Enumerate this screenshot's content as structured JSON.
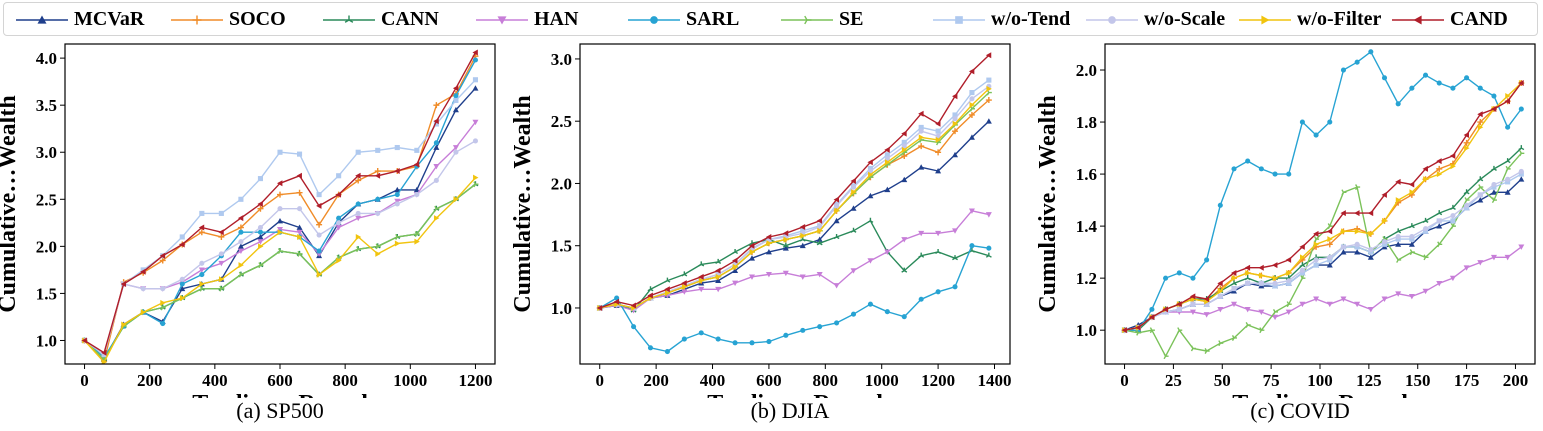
{
  "legend": [
    {
      "label": "MCVaR",
      "color": "#1f3f8c",
      "marker": "triangle-up"
    },
    {
      "label": "SOCO",
      "color": "#f08c28",
      "marker": "plus"
    },
    {
      "label": "CANN",
      "color": "#2a8a5a",
      "marker": "tri"
    },
    {
      "label": "HAN",
      "color": "#c77ed8",
      "marker": "triangle-down"
    },
    {
      "label": "SARL",
      "color": "#27a3d3",
      "marker": "circle"
    },
    {
      "label": "SE",
      "color": "#7bc25a",
      "marker": "tri-right"
    },
    {
      "label": "w/o-Tend",
      "color": "#afc9ef",
      "marker": "square"
    },
    {
      "label": "w/o-Scale",
      "color": "#c3c6ea",
      "marker": "circle"
    },
    {
      "label": "w/o-Filter",
      "color": "#f1c40f",
      "marker": "triangle-right"
    },
    {
      "label": "CAND",
      "color": "#b01e2a",
      "marker": "triangle-left"
    }
  ],
  "chart_data": [
    {
      "type": "line",
      "title": "(a) SP500",
      "xlabel": "Trading…Round",
      "ylabel": "Cumulative…Wealth",
      "xlim": [
        -60,
        1260
      ],
      "ylim": [
        0.75,
        4.15
      ],
      "xticks": [
        0,
        200,
        400,
        600,
        800,
        1000,
        1200
      ],
      "yticks": [
        1.0,
        1.5,
        2.0,
        2.5,
        3.0,
        3.5,
        4.0
      ],
      "x": [
        0,
        60,
        120,
        180,
        240,
        300,
        360,
        420,
        480,
        540,
        600,
        660,
        720,
        780,
        840,
        900,
        960,
        1020,
        1080,
        1140,
        1200
      ],
      "series": [
        {
          "name": "MCVaR",
          "values": [
            1.0,
            0.8,
            1.17,
            1.3,
            1.2,
            1.55,
            1.6,
            1.65,
            2.0,
            2.1,
            2.27,
            2.2,
            1.9,
            2.25,
            2.45,
            2.5,
            2.6,
            2.6,
            3.05,
            3.45,
            3.68
          ]
        },
        {
          "name": "SOCO",
          "values": [
            1.0,
            0.78,
            1.62,
            1.72,
            1.85,
            2.02,
            2.15,
            2.1,
            2.2,
            2.4,
            2.55,
            2.57,
            2.23,
            2.55,
            2.7,
            2.8,
            2.8,
            2.85,
            3.5,
            3.62,
            4.02
          ]
        },
        {
          "name": "CANN",
          "values": [
            1.0,
            0.8,
            1.15,
            1.3,
            1.35,
            1.45,
            1.55,
            1.55,
            1.7,
            1.8,
            1.95,
            1.92,
            1.7,
            1.88,
            1.97,
            2.0,
            2.1,
            2.13,
            2.4,
            2.5,
            2.66
          ]
        },
        {
          "name": "HAN",
          "values": [
            1.0,
            0.85,
            1.6,
            1.55,
            1.55,
            1.62,
            1.75,
            1.82,
            1.95,
            2.05,
            2.18,
            2.15,
            1.92,
            2.2,
            2.3,
            2.35,
            2.48,
            2.55,
            2.85,
            3.05,
            3.32
          ]
        },
        {
          "name": "SARL",
          "values": [
            1.0,
            0.82,
            1.15,
            1.3,
            1.18,
            1.6,
            1.7,
            1.9,
            2.15,
            2.15,
            2.15,
            2.1,
            1.95,
            2.3,
            2.45,
            2.5,
            2.55,
            2.85,
            3.1,
            3.6,
            3.98
          ]
        },
        {
          "name": "SE",
          "values": [
            1.0,
            0.8,
            1.15,
            1.3,
            1.35,
            1.45,
            1.55,
            1.55,
            1.7,
            1.8,
            1.95,
            1.92,
            1.7,
            1.88,
            1.97,
            2.0,
            2.1,
            2.13,
            2.4,
            2.5,
            2.66
          ]
        },
        {
          "name": "w/o-Tend",
          "values": [
            1.0,
            0.85,
            1.6,
            1.75,
            1.9,
            2.1,
            2.35,
            2.35,
            2.5,
            2.72,
            3.0,
            2.98,
            2.55,
            2.75,
            3.0,
            3.02,
            3.05,
            3.02,
            3.3,
            3.55,
            3.77
          ]
        },
        {
          "name": "w/o-Scale",
          "values": [
            1.0,
            0.85,
            1.6,
            1.55,
            1.55,
            1.65,
            1.82,
            1.92,
            2.05,
            2.2,
            2.4,
            2.4,
            2.12,
            2.25,
            2.35,
            2.35,
            2.45,
            2.55,
            2.7,
            3.0,
            3.12
          ]
        },
        {
          "name": "w/o-Filter",
          "values": [
            1.0,
            0.77,
            1.17,
            1.3,
            1.4,
            1.45,
            1.6,
            1.65,
            1.8,
            2.0,
            2.15,
            2.1,
            1.7,
            1.85,
            2.1,
            1.92,
            2.03,
            2.05,
            2.3,
            2.5,
            2.73
          ]
        },
        {
          "name": "CAND",
          "values": [
            1.0,
            0.87,
            1.6,
            1.73,
            1.9,
            2.02,
            2.2,
            2.15,
            2.3,
            2.45,
            2.67,
            2.75,
            2.43,
            2.55,
            2.75,
            2.75,
            2.8,
            2.87,
            3.33,
            3.68,
            4.06
          ]
        }
      ]
    },
    {
      "type": "line",
      "title": "(b) DJIA",
      "xlabel": "Trading…Round",
      "ylabel": "Cumulative…Wealth",
      "xlim": [
        -70,
        1455
      ],
      "ylim": [
        0.55,
        3.12
      ],
      "xticks": [
        0,
        200,
        400,
        600,
        800,
        1000,
        1200,
        1400
      ],
      "yticks": [
        1.0,
        1.5,
        2.0,
        2.5,
        3.0
      ],
      "x": [
        0,
        60,
        120,
        180,
        240,
        300,
        360,
        420,
        480,
        540,
        600,
        660,
        720,
        780,
        840,
        900,
        960,
        1020,
        1080,
        1140,
        1200,
        1260,
        1320,
        1380
      ],
      "series": [
        {
          "name": "MCVaR",
          "values": [
            1.0,
            1.02,
            1.0,
            1.08,
            1.1,
            1.15,
            1.2,
            1.22,
            1.3,
            1.4,
            1.45,
            1.48,
            1.5,
            1.55,
            1.7,
            1.8,
            1.9,
            1.95,
            2.03,
            2.13,
            2.1,
            2.23,
            2.37,
            2.5
          ]
        },
        {
          "name": "SOCO",
          "values": [
            1.0,
            1.03,
            1.0,
            1.08,
            1.12,
            1.17,
            1.22,
            1.25,
            1.33,
            1.45,
            1.52,
            1.55,
            1.58,
            1.62,
            1.78,
            1.92,
            2.05,
            2.15,
            2.22,
            2.3,
            2.25,
            2.42,
            2.55,
            2.67
          ]
        },
        {
          "name": "CANN",
          "values": [
            1.0,
            1.03,
            0.98,
            1.15,
            1.22,
            1.27,
            1.35,
            1.37,
            1.45,
            1.52,
            1.55,
            1.5,
            1.55,
            1.52,
            1.57,
            1.62,
            1.7,
            1.45,
            1.3,
            1.42,
            1.45,
            1.4,
            1.46,
            1.42
          ]
        },
        {
          "name": "HAN",
          "values": [
            1.0,
            1.02,
            0.98,
            1.08,
            1.1,
            1.13,
            1.15,
            1.15,
            1.2,
            1.25,
            1.27,
            1.28,
            1.25,
            1.27,
            1.18,
            1.3,
            1.38,
            1.45,
            1.55,
            1.6,
            1.6,
            1.62,
            1.78,
            1.75
          ]
        },
        {
          "name": "SARL",
          "values": [
            1.0,
            1.08,
            0.85,
            0.68,
            0.65,
            0.75,
            0.8,
            0.75,
            0.72,
            0.72,
            0.73,
            0.78,
            0.82,
            0.85,
            0.88,
            0.95,
            1.03,
            0.97,
            0.93,
            1.07,
            1.13,
            1.17,
            1.5,
            1.48
          ]
        },
        {
          "name": "SE",
          "values": [
            1.0,
            1.03,
            1.0,
            1.08,
            1.12,
            1.17,
            1.22,
            1.25,
            1.33,
            1.45,
            1.52,
            1.55,
            1.58,
            1.62,
            1.78,
            1.92,
            2.05,
            2.15,
            2.25,
            2.35,
            2.33,
            2.47,
            2.6,
            2.73
          ]
        },
        {
          "name": "w/o-Tend",
          "values": [
            1.0,
            1.03,
            1.0,
            1.08,
            1.13,
            1.18,
            1.23,
            1.27,
            1.35,
            1.48,
            1.55,
            1.58,
            1.62,
            1.66,
            1.83,
            1.98,
            2.12,
            2.23,
            2.33,
            2.45,
            2.42,
            2.55,
            2.73,
            2.83
          ]
        },
        {
          "name": "w/o-Scale",
          "values": [
            1.0,
            1.03,
            1.0,
            1.08,
            1.13,
            1.18,
            1.23,
            1.27,
            1.35,
            1.47,
            1.55,
            1.57,
            1.6,
            1.65,
            1.82,
            1.97,
            2.1,
            2.2,
            2.3,
            2.42,
            2.38,
            2.52,
            2.68,
            2.78
          ]
        },
        {
          "name": "w/o-Filter",
          "values": [
            1.0,
            1.03,
            1.0,
            1.08,
            1.12,
            1.17,
            1.22,
            1.25,
            1.33,
            1.45,
            1.52,
            1.55,
            1.58,
            1.62,
            1.78,
            1.93,
            2.07,
            2.17,
            2.27,
            2.37,
            2.35,
            2.48,
            2.63,
            2.76
          ]
        },
        {
          "name": "CAND",
          "values": [
            1.0,
            1.05,
            1.02,
            1.1,
            1.15,
            1.2,
            1.25,
            1.3,
            1.38,
            1.5,
            1.57,
            1.6,
            1.65,
            1.7,
            1.87,
            2.02,
            2.17,
            2.27,
            2.4,
            2.56,
            2.48,
            2.7,
            2.9,
            3.03
          ]
        }
      ]
    },
    {
      "type": "line",
      "title": "(c) COVID",
      "xlabel": "Trading…Round",
      "ylabel": "Cumulative…Wealth",
      "xlim": [
        -10,
        210
      ],
      "ylim": [
        0.87,
        2.1
      ],
      "xticks": [
        0,
        25,
        50,
        75,
        100,
        125,
        150,
        175,
        200
      ],
      "yticks": [
        1.0,
        1.2,
        1.4,
        1.6,
        1.8,
        2.0
      ],
      "x": [
        0,
        7,
        14,
        21,
        28,
        35,
        42,
        49,
        56,
        63,
        70,
        77,
        84,
        91,
        98,
        105,
        112,
        119,
        126,
        133,
        140,
        147,
        154,
        161,
        168,
        175,
        182,
        189,
        196,
        203
      ],
      "series": [
        {
          "name": "MCVaR",
          "values": [
            1.0,
            1.02,
            1.05,
            1.07,
            1.08,
            1.1,
            1.1,
            1.13,
            1.15,
            1.18,
            1.17,
            1.17,
            1.18,
            1.22,
            1.25,
            1.25,
            1.3,
            1.3,
            1.28,
            1.32,
            1.33,
            1.33,
            1.38,
            1.4,
            1.42,
            1.47,
            1.5,
            1.53,
            1.53,
            1.58
          ]
        },
        {
          "name": "SOCO",
          "values": [
            1.0,
            1.01,
            1.05,
            1.08,
            1.1,
            1.12,
            1.11,
            1.16,
            1.2,
            1.22,
            1.21,
            1.2,
            1.22,
            1.27,
            1.32,
            1.33,
            1.38,
            1.39,
            1.37,
            1.42,
            1.49,
            1.52,
            1.58,
            1.62,
            1.64,
            1.72,
            1.8,
            1.85,
            1.88,
            1.95
          ]
        },
        {
          "name": "CANN",
          "values": [
            1.0,
            1.0,
            1.05,
            1.08,
            1.1,
            1.12,
            1.12,
            1.15,
            1.18,
            1.2,
            1.18,
            1.2,
            1.2,
            1.25,
            1.28,
            1.28,
            1.32,
            1.32,
            1.3,
            1.35,
            1.38,
            1.4,
            1.42,
            1.45,
            1.47,
            1.53,
            1.58,
            1.62,
            1.65,
            1.7
          ]
        },
        {
          "name": "HAN",
          "values": [
            1.0,
            1.01,
            1.05,
            1.07,
            1.07,
            1.07,
            1.06,
            1.08,
            1.1,
            1.08,
            1.07,
            1.05,
            1.07,
            1.1,
            1.12,
            1.1,
            1.12,
            1.1,
            1.08,
            1.12,
            1.14,
            1.13,
            1.15,
            1.18,
            1.2,
            1.24,
            1.26,
            1.28,
            1.28,
            1.32
          ]
        },
        {
          "name": "SARL",
          "values": [
            1.0,
            1.0,
            1.08,
            1.2,
            1.22,
            1.2,
            1.27,
            1.48,
            1.62,
            1.65,
            1.62,
            1.6,
            1.6,
            1.8,
            1.75,
            1.8,
            2.0,
            2.03,
            2.07,
            1.97,
            1.87,
            1.93,
            1.98,
            1.95,
            1.93,
            1.97,
            1.93,
            1.9,
            1.78,
            1.85
          ]
        },
        {
          "name": "SE",
          "values": [
            1.0,
            0.99,
            1.0,
            0.9,
            1.0,
            0.93,
            0.92,
            0.95,
            0.97,
            1.02,
            1.0,
            1.07,
            1.1,
            1.2,
            1.35,
            1.4,
            1.53,
            1.55,
            1.3,
            1.35,
            1.27,
            1.3,
            1.28,
            1.33,
            1.4,
            1.5,
            1.55,
            1.5,
            1.62,
            1.68
          ]
        },
        {
          "name": "w/o-Tend",
          "values": [
            1.0,
            1.01,
            1.05,
            1.07,
            1.08,
            1.1,
            1.1,
            1.13,
            1.16,
            1.18,
            1.18,
            1.17,
            1.18,
            1.22,
            1.25,
            1.27,
            1.32,
            1.32,
            1.3,
            1.33,
            1.35,
            1.35,
            1.38,
            1.42,
            1.42,
            1.47,
            1.52,
            1.55,
            1.57,
            1.6
          ]
        },
        {
          "name": "w/o-Scale",
          "values": [
            1.0,
            1.01,
            1.05,
            1.07,
            1.08,
            1.1,
            1.1,
            1.13,
            1.16,
            1.18,
            1.18,
            1.18,
            1.19,
            1.23,
            1.27,
            1.28,
            1.32,
            1.33,
            1.31,
            1.34,
            1.36,
            1.36,
            1.39,
            1.42,
            1.44,
            1.48,
            1.52,
            1.56,
            1.58,
            1.61
          ]
        },
        {
          "name": "w/o-Filter",
          "values": [
            1.0,
            1.01,
            1.05,
            1.08,
            1.1,
            1.12,
            1.11,
            1.15,
            1.2,
            1.22,
            1.21,
            1.2,
            1.22,
            1.28,
            1.33,
            1.35,
            1.38,
            1.38,
            1.37,
            1.42,
            1.5,
            1.53,
            1.58,
            1.6,
            1.63,
            1.7,
            1.78,
            1.85,
            1.9,
            1.95
          ]
        },
        {
          "name": "CAND",
          "values": [
            1.0,
            1.01,
            1.05,
            1.08,
            1.1,
            1.13,
            1.12,
            1.18,
            1.22,
            1.24,
            1.24,
            1.25,
            1.27,
            1.32,
            1.37,
            1.38,
            1.45,
            1.45,
            1.45,
            1.52,
            1.57,
            1.56,
            1.62,
            1.65,
            1.67,
            1.75,
            1.83,
            1.85,
            1.88,
            1.95
          ]
        }
      ]
    }
  ]
}
